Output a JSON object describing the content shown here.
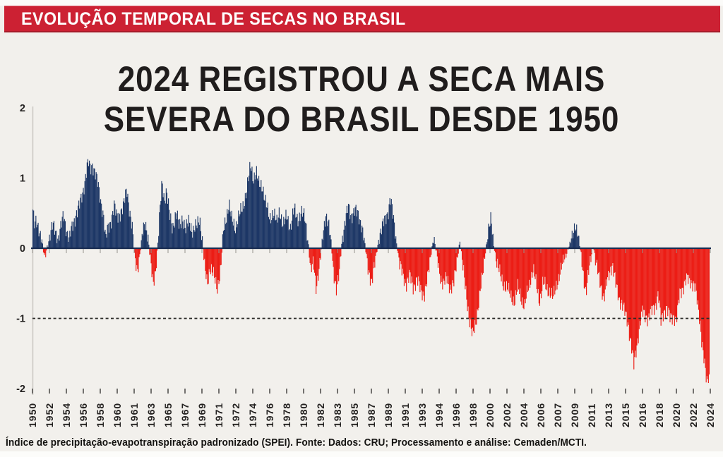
{
  "banner": {
    "title": "EVOLUÇÃO TEMPORAL DE SECAS NO BRASIL",
    "bg_color": "#cc2133",
    "text_color": "#ffffff"
  },
  "title": {
    "line1": "2024 REGISTROU A SECA MAIS",
    "line2": "SEVERA DO BRASIL DESDE 1950"
  },
  "source_note": "Índice de precipitação-evapotranspiração padronizado (SPEI). Fonte: Dados: CRU; Processamento e análise: Cemaden/MCTI.",
  "chart_data": {
    "type": "bar",
    "title": "2024 REGISTROU A SECA MAIS SEVERA DO BRASIL DESDE 1950",
    "ylim": [
      -2,
      2
    ],
    "yticks": [
      2,
      1,
      0,
      -1,
      -2
    ],
    "x_range": [
      1950,
      2025
    ],
    "sampling": "monthly",
    "grid": false,
    "reference_line": {
      "y": -1,
      "style": "dashed",
      "color": "#2b2b28"
    },
    "colors": {
      "positive_bar": "#1d3766",
      "negative_bar": "#ec1d15",
      "zero_line": "#1a2d52",
      "spine": "#c9c6c1"
    },
    "xtick_labels": [
      "1950",
      "1952",
      "1954",
      "1956",
      "1958",
      "1960",
      "1961",
      "1963",
      "1965",
      "1967",
      "1969",
      "1971",
      "1972",
      "1974",
      "1976",
      "1978",
      "1980",
      "1982",
      "1983",
      "1985",
      "1987",
      "1989",
      "1991",
      "1993",
      "1994",
      "1996",
      "1998",
      "2000",
      "2002",
      "2004",
      "2006",
      "2007",
      "2009",
      "2011",
      "2013",
      "2015",
      "2016",
      "2018",
      "2020",
      "2022",
      "2024"
    ],
    "series_anchors": [
      [
        1950.0,
        0.55
      ],
      [
        1950.17,
        0.32
      ],
      [
        1950.4,
        0.36
      ],
      [
        1950.7,
        0.28
      ],
      [
        1951.0,
        0.12
      ],
      [
        1951.3,
        -0.18
      ],
      [
        1951.6,
        0.04
      ],
      [
        1951.9,
        0.2
      ],
      [
        1952.2,
        0.32
      ],
      [
        1952.5,
        0.24
      ],
      [
        1952.8,
        0.14
      ],
      [
        1953.1,
        0.3
      ],
      [
        1953.4,
        0.47
      ],
      [
        1953.7,
        0.28
      ],
      [
        1954.0,
        0.13
      ],
      [
        1954.4,
        0.32
      ],
      [
        1954.8,
        0.5
      ],
      [
        1955.2,
        0.62
      ],
      [
        1955.5,
        0.78
      ],
      [
        1955.8,
        1.0
      ],
      [
        1956.1,
        1.25
      ],
      [
        1956.35,
        1.12
      ],
      [
        1956.6,
        1.2
      ],
      [
        1956.9,
        1.08
      ],
      [
        1957.2,
        0.9
      ],
      [
        1957.5,
        0.68
      ],
      [
        1957.8,
        0.5
      ],
      [
        1958.05,
        0.12
      ],
      [
        1958.3,
        0.28
      ],
      [
        1958.6,
        0.38
      ],
      [
        1959.0,
        0.6
      ],
      [
        1959.3,
        0.44
      ],
      [
        1959.6,
        0.5
      ],
      [
        1960.0,
        0.58
      ],
      [
        1960.4,
        0.85
      ],
      [
        1960.7,
        0.55
      ],
      [
        1961.0,
        0.28
      ],
      [
        1961.25,
        -0.12
      ],
      [
        1961.55,
        -0.3
      ],
      [
        1961.85,
        -0.08
      ],
      [
        1962.15,
        0.22
      ],
      [
        1962.45,
        0.38
      ],
      [
        1962.75,
        0.16
      ],
      [
        1963.0,
        -0.18
      ],
      [
        1963.3,
        -0.52
      ],
      [
        1963.6,
        -0.28
      ],
      [
        1963.85,
        0.1
      ],
      [
        1964.1,
        0.6
      ],
      [
        1964.3,
        0.95
      ],
      [
        1964.55,
        0.7
      ],
      [
        1964.8,
        0.82
      ],
      [
        1965.1,
        0.48
      ],
      [
        1965.45,
        0.3
      ],
      [
        1965.85,
        0.5
      ],
      [
        1966.2,
        0.3
      ],
      [
        1966.55,
        0.45
      ],
      [
        1966.9,
        0.25
      ],
      [
        1967.3,
        0.4
      ],
      [
        1967.7,
        0.24
      ],
      [
        1968.1,
        0.3
      ],
      [
        1968.45,
        0.45
      ],
      [
        1968.75,
        0.12
      ],
      [
        1969.0,
        -0.28
      ],
      [
        1969.3,
        -0.5
      ],
      [
        1969.6,
        -0.26
      ],
      [
        1970.0,
        -0.4
      ],
      [
        1970.4,
        -0.56
      ],
      [
        1970.8,
        -0.3
      ],
      [
        1971.05,
        0.22
      ],
      [
        1971.4,
        0.45
      ],
      [
        1971.7,
        0.64
      ],
      [
        1972.0,
        0.4
      ],
      [
        1972.4,
        0.3
      ],
      [
        1972.8,
        0.46
      ],
      [
        1973.2,
        0.56
      ],
      [
        1973.6,
        0.8
      ],
      [
        1973.9,
        1.02
      ],
      [
        1974.1,
        1.17
      ],
      [
        1974.4,
        1.0
      ],
      [
        1974.7,
        1.1
      ],
      [
        1975.0,
        0.9
      ],
      [
        1975.4,
        0.9
      ],
      [
        1975.8,
        0.62
      ],
      [
        1976.2,
        0.42
      ],
      [
        1976.6,
        0.52
      ],
      [
        1977.0,
        0.35
      ],
      [
        1977.3,
        0.55
      ],
      [
        1977.7,
        0.32
      ],
      [
        1978.1,
        0.46
      ],
      [
        1978.5,
        0.3
      ],
      [
        1978.9,
        0.55
      ],
      [
        1979.3,
        0.42
      ],
      [
        1979.7,
        0.5
      ],
      [
        1980.1,
        0.44
      ],
      [
        1980.45,
        0.12
      ],
      [
        1980.75,
        -0.35
      ],
      [
        1981.05,
        -0.2
      ],
      [
        1981.35,
        -0.55
      ],
      [
        1981.75,
        -0.25
      ],
      [
        1982.05,
        0.15
      ],
      [
        1982.4,
        0.5
      ],
      [
        1982.7,
        0.34
      ],
      [
        1983.0,
        0.08
      ],
      [
        1983.25,
        -0.3
      ],
      [
        1983.6,
        -0.6
      ],
      [
        1983.9,
        -0.38
      ],
      [
        1984.2,
        0.12
      ],
      [
        1984.6,
        0.42
      ],
      [
        1984.9,
        0.58
      ],
      [
        1985.2,
        0.46
      ],
      [
        1985.6,
        0.55
      ],
      [
        1986.0,
        0.46
      ],
      [
        1986.4,
        0.34
      ],
      [
        1986.75,
        0.04
      ],
      [
        1987.05,
        -0.26
      ],
      [
        1987.5,
        -0.48
      ],
      [
        1987.9,
        -0.18
      ],
      [
        1988.3,
        0.16
      ],
      [
        1988.65,
        0.3
      ],
      [
        1989.0,
        0.42
      ],
      [
        1989.35,
        0.55
      ],
      [
        1989.55,
        0.72
      ],
      [
        1989.8,
        0.5
      ],
      [
        1990.05,
        0.28
      ],
      [
        1990.3,
        0.02
      ],
      [
        1990.6,
        -0.25
      ],
      [
        1990.95,
        -0.38
      ],
      [
        1991.3,
        -0.5
      ],
      [
        1991.7,
        -0.4
      ],
      [
        1992.1,
        -0.55
      ],
      [
        1992.5,
        -0.44
      ],
      [
        1992.9,
        -0.6
      ],
      [
        1993.3,
        -0.66
      ],
      [
        1993.7,
        -0.42
      ],
      [
        1994.05,
        -0.08
      ],
      [
        1994.35,
        0.18
      ],
      [
        1994.7,
        -0.12
      ],
      [
        1995.0,
        -0.36
      ],
      [
        1995.4,
        -0.5
      ],
      [
        1995.8,
        -0.44
      ],
      [
        1996.2,
        -0.56
      ],
      [
        1996.6,
        -0.5
      ],
      [
        1997.0,
        -0.12
      ],
      [
        1997.25,
        0.12
      ],
      [
        1997.6,
        -0.3
      ],
      [
        1998.0,
        -0.7
      ],
      [
        1998.35,
        -1.05
      ],
      [
        1998.65,
        -1.27
      ],
      [
        1999.0,
        -1.05
      ],
      [
        1999.35,
        -0.75
      ],
      [
        1999.7,
        -0.45
      ],
      [
        2000.0,
        -0.12
      ],
      [
        2000.35,
        0.22
      ],
      [
        2000.7,
        0.4
      ],
      [
        2001.0,
        0.05
      ],
      [
        2001.35,
        -0.22
      ],
      [
        2001.75,
        -0.4
      ],
      [
        2002.15,
        -0.52
      ],
      [
        2002.55,
        -0.6
      ],
      [
        2002.95,
        -0.68
      ],
      [
        2003.3,
        -0.77
      ],
      [
        2003.7,
        -0.55
      ],
      [
        2004.05,
        -0.7
      ],
      [
        2004.4,
        -0.85
      ],
      [
        2004.75,
        -0.6
      ],
      [
        2005.05,
        -0.45
      ],
      [
        2005.35,
        -0.3
      ],
      [
        2005.75,
        -0.55
      ],
      [
        2006.1,
        -0.75
      ],
      [
        2006.45,
        -0.5
      ],
      [
        2006.85,
        -0.56
      ],
      [
        2007.2,
        -0.62
      ],
      [
        2007.55,
        -0.72
      ],
      [
        2007.95,
        -0.5
      ],
      [
        2008.35,
        -0.36
      ],
      [
        2008.75,
        -0.16
      ],
      [
        2009.1,
        -0.05
      ],
      [
        2009.45,
        0.06
      ],
      [
        2009.75,
        0.2
      ],
      [
        2010.0,
        0.36
      ],
      [
        2010.25,
        0.24
      ],
      [
        2010.5,
        0.04
      ],
      [
        2010.8,
        -0.25
      ],
      [
        2011.05,
        -0.5
      ],
      [
        2011.2,
        -0.64
      ],
      [
        2011.5,
        -0.35
      ],
      [
        2011.8,
        -0.1
      ],
      [
        2012.0,
        0.06
      ],
      [
        2012.25,
        -0.18
      ],
      [
        2012.6,
        -0.4
      ],
      [
        2012.95,
        -0.58
      ],
      [
        2013.2,
        -0.72
      ],
      [
        2013.5,
        -0.5
      ],
      [
        2013.8,
        -0.34
      ],
      [
        2014.1,
        -0.22
      ],
      [
        2014.5,
        -0.52
      ],
      [
        2014.9,
        -0.72
      ],
      [
        2015.2,
        -0.8
      ],
      [
        2015.5,
        -0.92
      ],
      [
        2015.85,
        -1.05
      ],
      [
        2016.2,
        -1.38
      ],
      [
        2016.5,
        -1.68
      ],
      [
        2016.75,
        -1.45
      ],
      [
        2017.05,
        -1.18
      ],
      [
        2017.4,
        -0.92
      ],
      [
        2017.8,
        -0.95
      ],
      [
        2018.1,
        -1.0
      ],
      [
        2018.5,
        -0.9
      ],
      [
        2018.9,
        -0.8
      ],
      [
        2019.2,
        -0.65
      ],
      [
        2019.5,
        -1.05
      ],
      [
        2019.8,
        -0.9
      ],
      [
        2020.1,
        -0.85
      ],
      [
        2020.5,
        -1.0
      ],
      [
        2020.9,
        -0.95
      ],
      [
        2021.2,
        -1.05
      ],
      [
        2021.6,
        -0.62
      ],
      [
        2021.95,
        -0.55
      ],
      [
        2022.3,
        -0.46
      ],
      [
        2022.7,
        -0.44
      ],
      [
        2023.0,
        -0.5
      ],
      [
        2023.3,
        -0.58
      ],
      [
        2023.55,
        -0.78
      ],
      [
        2023.8,
        -1.0
      ],
      [
        2024.0,
        -1.3
      ],
      [
        2024.3,
        -1.65
      ],
      [
        2024.55,
        -1.9
      ],
      [
        2024.8,
        -1.82
      ]
    ]
  }
}
